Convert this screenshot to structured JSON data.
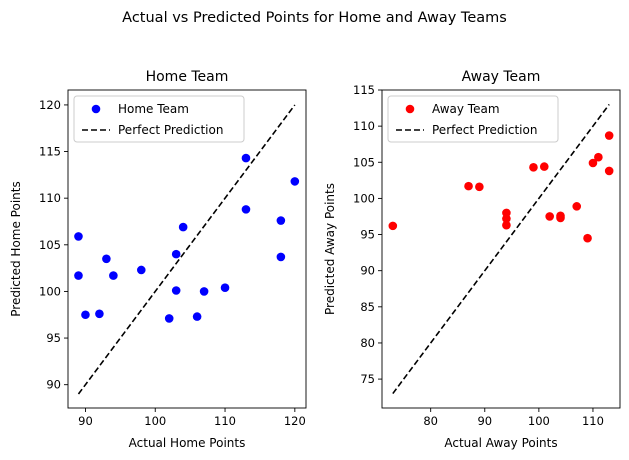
{
  "figure": {
    "suptitle": "Actual vs Predicted Points for Home and Away Teams"
  },
  "chart_data": [
    {
      "type": "scatter",
      "title": "Home Team",
      "xlabel": "Actual Home Points",
      "ylabel": "Predicted Home Points",
      "xlim": [
        87.5,
        121.6
      ],
      "ylim": [
        87.5,
        121.6
      ],
      "xticks": [
        90,
        100,
        110,
        120
      ],
      "yticks": [
        90,
        95,
        100,
        105,
        110,
        115,
        120
      ],
      "legend_position": "top-left",
      "grid": false,
      "series": [
        {
          "name": "Home Team",
          "kind": "points",
          "color": "#0000ff",
          "points": [
            [
              89,
              105.9
            ],
            [
              89,
              101.7
            ],
            [
              90,
              97.5
            ],
            [
              92,
              97.6
            ],
            [
              93,
              103.5
            ],
            [
              94,
              101.7
            ],
            [
              98,
              102.3
            ],
            [
              102,
              97.1
            ],
            [
              103,
              104.0
            ],
            [
              103,
              100.1
            ],
            [
              104,
              106.9
            ],
            [
              106,
              97.3
            ],
            [
              107,
              100.0
            ],
            [
              110,
              100.4
            ],
            [
              113,
              114.3
            ],
            [
              113,
              108.8
            ],
            [
              118,
              107.6
            ],
            [
              118,
              103.7
            ],
            [
              120,
              111.8
            ]
          ]
        },
        {
          "name": "Perfect Prediction",
          "kind": "line",
          "color": "#000000",
          "dash": "dashed",
          "points": [
            [
              89,
              89
            ],
            [
              120,
              120
            ]
          ]
        }
      ]
    },
    {
      "type": "scatter",
      "title": "Away Team",
      "xlabel": "Actual Away Points",
      "ylabel": "Predicted Away Points",
      "xlim": [
        71,
        115
      ],
      "ylim": [
        71,
        115
      ],
      "xticks": [
        80,
        90,
        100,
        110
      ],
      "yticks": [
        75,
        80,
        85,
        90,
        95,
        100,
        105,
        110,
        115
      ],
      "legend_position": "top-left",
      "grid": false,
      "series": [
        {
          "name": "Away Team",
          "kind": "points",
          "color": "#ff0000",
          "points": [
            [
              73,
              96.2
            ],
            [
              87,
              101.7
            ],
            [
              89,
              101.6
            ],
            [
              94,
              98.0
            ],
            [
              94,
              97.2
            ],
            [
              94,
              96.3
            ],
            [
              99,
              104.3
            ],
            [
              101,
              104.4
            ],
            [
              102,
              97.5
            ],
            [
              104,
              97.6
            ],
            [
              104,
              97.3
            ],
            [
              107,
              98.9
            ],
            [
              109,
              94.5
            ],
            [
              110,
              104.9
            ],
            [
              111,
              105.7
            ],
            [
              113,
              108.7
            ],
            [
              113,
              103.8
            ]
          ]
        },
        {
          "name": "Perfect Prediction",
          "kind": "line",
          "color": "#000000",
          "dash": "dashed",
          "points": [
            [
              73,
              73
            ],
            [
              113,
              113
            ]
          ]
        }
      ]
    }
  ]
}
